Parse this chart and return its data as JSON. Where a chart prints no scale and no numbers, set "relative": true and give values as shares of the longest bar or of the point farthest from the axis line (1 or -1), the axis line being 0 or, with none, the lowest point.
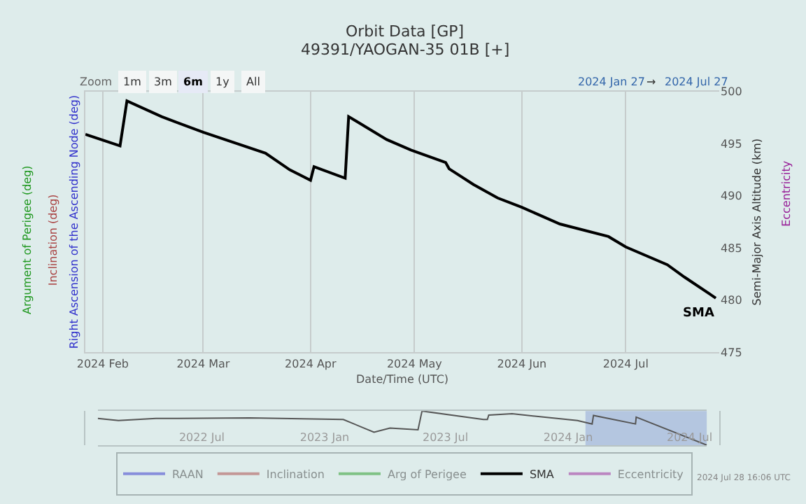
{
  "chart_data": [
    {
      "type": "line",
      "title": "Orbit Data [GP]",
      "subtitle": "49391/YAOGAN-35 01B [+]",
      "xlabel": "Date/Time (UTC)",
      "ylabel": "Right Ascension of the Ascending Node (deg)",
      "y2label": "Semi-Major Axis Altitude (km)",
      "x": [
        "2024-01-27",
        "2024-02-06",
        "2024-02-08",
        "2024-02-18",
        "2024-03-01",
        "2024-03-19",
        "2024-03-26",
        "2024-04-01",
        "2024-04-02",
        "2024-04-11",
        "2024-04-12",
        "2024-04-23",
        "2024-04-30",
        "2024-05-10",
        "2024-05-11",
        "2024-05-18",
        "2024-05-25",
        "2024-06-01",
        "2024-06-12",
        "2024-06-26",
        "2024-07-01",
        "2024-07-13",
        "2024-07-18",
        "2024-07-27"
      ],
      "series": [
        {
          "name": "RAAN",
          "color": "#3333cc",
          "values": [
            null,
            null,
            null,
            null,
            null,
            null,
            null,
            null,
            null,
            null,
            null,
            null,
            null,
            null,
            null,
            null,
            null,
            null,
            null,
            null,
            null,
            null,
            null,
            null
          ]
        },
        {
          "name": "Inclination",
          "color": "#aa4444",
          "values": [
            null,
            null,
            null,
            null,
            null,
            null,
            null,
            null,
            null,
            null,
            null,
            null,
            null,
            null,
            null,
            null,
            null,
            null,
            null,
            null,
            null,
            null,
            null,
            null
          ]
        },
        {
          "name": "Arg of Perigee",
          "color": "#229922",
          "values": [
            null,
            null,
            null,
            null,
            null,
            null,
            null,
            null,
            null,
            null,
            null,
            null,
            null,
            null,
            null,
            null,
            null,
            null,
            null,
            null,
            null,
            null,
            null,
            null
          ]
        },
        {
          "name": "SMA",
          "color": "#000000",
          "axis": "y2",
          "values": [
            495.9,
            494.8,
            499.1,
            497.6,
            496.1,
            494.1,
            492.5,
            491.5,
            492.8,
            491.7,
            497.6,
            495.4,
            494.4,
            493.2,
            492.6,
            491.1,
            489.8,
            488.9,
            487.3,
            486.1,
            485.1,
            483.4,
            482.2,
            480.2
          ]
        },
        {
          "name": "Eccentricity",
          "color": "#992299",
          "values": [
            null,
            null,
            null,
            null,
            null,
            null,
            null,
            null,
            null,
            null,
            null,
            null,
            null,
            null,
            null,
            null,
            null,
            null,
            null,
            null,
            null,
            null,
            null,
            null
          ]
        }
      ],
      "xlim": [
        "2024-01-27",
        "2024-07-28"
      ],
      "xticks": [
        {
          "value": "2024-02-01",
          "label": "2024 Feb"
        },
        {
          "value": "2024-03-01",
          "label": "2024 Mar"
        },
        {
          "value": "2024-04-01",
          "label": "2024 Apr"
        },
        {
          "value": "2024-05-01",
          "label": "2024 May"
        },
        {
          "value": "2024-06-01",
          "label": "2024 Jun"
        },
        {
          "value": "2024-07-01",
          "label": "2024 Jul"
        }
      ],
      "y2lim": [
        475,
        500
      ],
      "y2ticks": [
        475,
        480,
        485,
        490,
        495,
        500
      ],
      "grid": "x",
      "legend": "bottom",
      "marker": "none",
      "line_style": "solid",
      "annotations": [
        "Zoom",
        "1m",
        "3m",
        "6m",
        "1y",
        "All",
        "2024 Jan 27",
        "→",
        "2024 Jul 27",
        "Argument of Perigee (deg)",
        "Inclination (deg)",
        "Eccentricity",
        "2024 Jul 28 16:06 UTC"
      ]
    },
    {
      "type": "line",
      "relative": true,
      "color": "#555555",
      "x": [
        "2022-01-26",
        "2022-02-26",
        "2022-04-23",
        "2022-09-11",
        "2023-01-29",
        "2023-03-16",
        "2023-04-09",
        "2023-05-21",
        "2023-05-27",
        "2023-08-27",
        "2023-09-02",
        "2023-09-04",
        "2023-10-09",
        "2024-01-15",
        "2024-02-06",
        "2024-02-08",
        "2024-04-11",
        "2024-04-12",
        "2024-07-27"
      ],
      "values": [
        0.78,
        0.72,
        0.78,
        0.8,
        0.75,
        0.38,
        0.5,
        0.45,
        1,
        0.75,
        0.75,
        0.88,
        0.92,
        0.72,
        0.62,
        0.87,
        0.62,
        0.82,
        0
      ],
      "xlim": [
        "2022-01-26",
        "2024-07-27"
      ],
      "xticks": [
        {
          "value": "2022-07-01",
          "label": "2022 Jul"
        },
        {
          "value": "2023-01-01",
          "label": "2023 Jan"
        },
        {
          "value": "2023-07-01",
          "label": "2023 Jul"
        },
        {
          "value": "2024-01-01",
          "label": "2024 Jan"
        },
        {
          "value": "2024-07-01",
          "label": "2024 Jul"
        }
      ],
      "bands": [
        {
          "axis": "x",
          "from": "2024-01-27",
          "to": "2024-07-27",
          "color": "#b4c6e0"
        }
      ]
    }
  ]
}
